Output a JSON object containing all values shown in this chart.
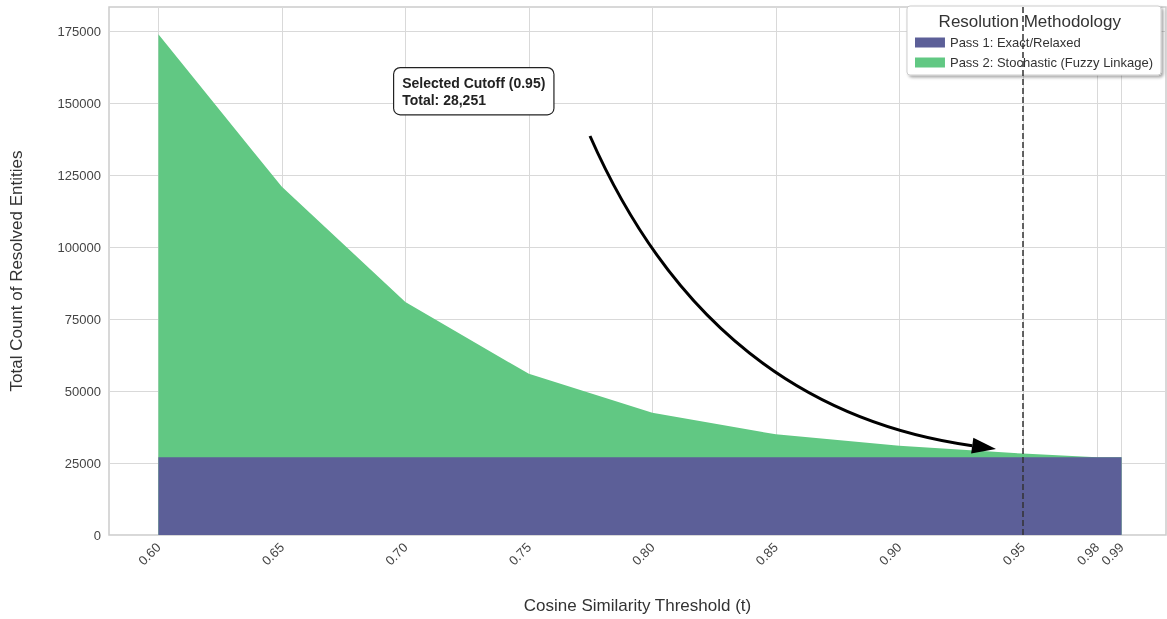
{
  "chart_data": {
    "type": "area",
    "stacked": true,
    "xlabel": "Cosine Similarity Threshold (t)",
    "ylabel": "Total Count of Resolved Entities",
    "legend_title": "Resolution Methodology",
    "legend": "top right",
    "grid": true,
    "x": [
      0.6,
      0.65,
      0.7,
      0.75,
      0.8,
      0.85,
      0.9,
      0.95,
      0.98,
      0.99
    ],
    "series": [
      {
        "name": "Pass 1: Exact/Relaxed",
        "color": "#5c5f98",
        "values": [
          27000,
          27000,
          27000,
          27000,
          27000,
          27000,
          27000,
          27000,
          27000,
          27000
        ]
      },
      {
        "name": "Pass 2: Stochastic (Fuzzy Linkage)",
        "color": "#61c883",
        "values": [
          147000,
          94000,
          54000,
          29000,
          15500,
          8000,
          4000,
          1300,
          0,
          0
        ]
      }
    ],
    "xlim": [
      0.58,
      1.008
    ],
    "xticks": [
      {
        "value": 0.6,
        "label": "0.60"
      },
      {
        "value": 0.65,
        "label": "0.65"
      },
      {
        "value": 0.7,
        "label": "0.70"
      },
      {
        "value": 0.75,
        "label": "0.75"
      },
      {
        "value": 0.8,
        "label": "0.80"
      },
      {
        "value": 0.85,
        "label": "0.85"
      },
      {
        "value": 0.9,
        "label": "0.90"
      },
      {
        "value": 0.95,
        "label": "0.95"
      },
      {
        "value": 0.98,
        "label": "0.98"
      },
      {
        "value": 0.99,
        "label": "0.99"
      }
    ],
    "ylim": [
      0,
      183500
    ],
    "yticks": [
      0,
      25000,
      50000,
      75000,
      100000,
      125000,
      150000,
      175000
    ],
    "ref_lines": [
      {
        "axis": "x",
        "value": 0.95,
        "line_style": "dashed",
        "color": "#333333"
      }
    ],
    "annotations": [
      "Selected Cutoff (0.95)\nTotal: 28,251"
    ]
  }
}
